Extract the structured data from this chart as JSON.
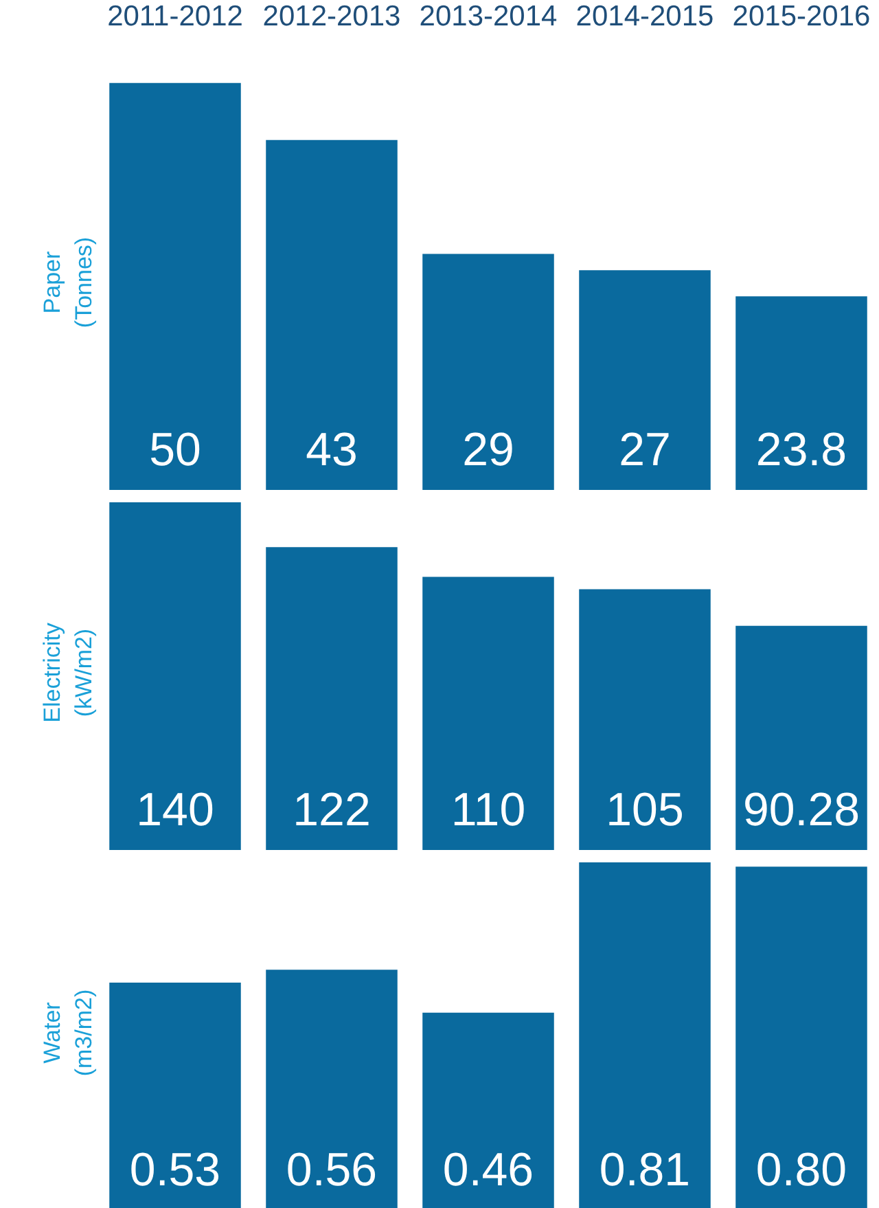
{
  "chart_data": [
    {
      "type": "bar",
      "ylabel": "Paper\n(Tonnes)",
      "categories": [
        "2011-2012",
        "2012-2013",
        "2013-2014",
        "2014-2015",
        "2015-2016"
      ],
      "values": [
        50,
        43,
        29,
        27,
        23.8
      ],
      "color": "#0a6a9e",
      "data_labels": true,
      "tick_labels": "x"
    },
    {
      "type": "bar",
      "ylabel": "Electricity\n(kW/m2)",
      "categories": [
        null,
        null,
        null,
        null,
        null
      ],
      "values": [
        140,
        122,
        110,
        105,
        90.28
      ],
      "color": "#0a6a9e",
      "data_labels": true,
      "tick_labels": false
    },
    {
      "type": "bar",
      "ylabel": "Water\n(m3/m2)",
      "categories": [
        null,
        null,
        null,
        null,
        null
      ],
      "values": [
        0.53,
        0.56,
        0.46,
        0.81,
        0.8
      ],
      "value_labels": [
        "0.53",
        "0.56",
        "0.46",
        "0.81",
        "0.80"
      ],
      "color": "#0a6a9e",
      "tick_labels": false
    }
  ]
}
